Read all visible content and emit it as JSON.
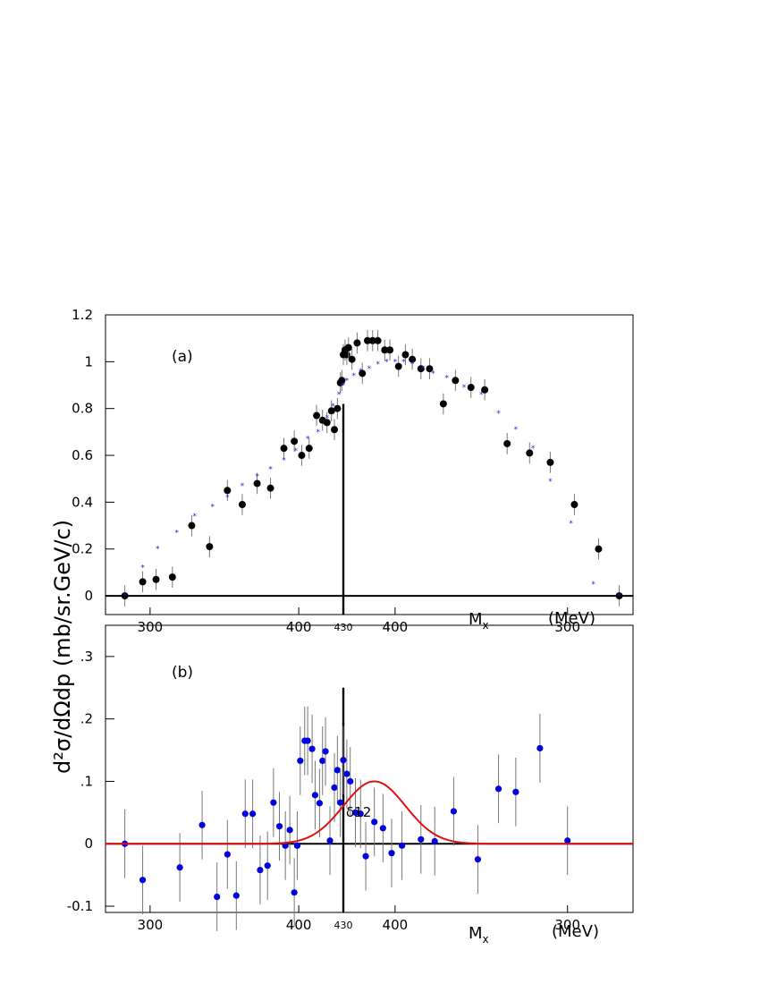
{
  "figure": {
    "ylabel": "d²σ/dΩdp  (mb/sr.GeV/c)",
    "x_axis_label_main": "M",
    "x_axis_label_sub": "x",
    "x_axis_unit": "(MeV)",
    "colors": {
      "data_a": "#000000",
      "sim_a": "#1f1fd9",
      "data_b": "#0000e0",
      "fit_b": "#e01010",
      "axes": "#000000",
      "errorbar": "#777777"
    }
  },
  "chart_data": [
    {
      "type": "scatter",
      "panel_label": "(a)",
      "ylim": [
        -0.08,
        1.2
      ],
      "x_note": "Missing mass folded about the 430 MeV kinematic limit: left branch rises 280→430, right branch falls 430→270.",
      "x_ticks": [
        {
          "label": "300",
          "branch": "left",
          "mx": 300
        },
        {
          "label": "400",
          "branch": "left",
          "mx": 400
        },
        {
          "label": "430",
          "branch": "center",
          "mx": 430,
          "small": true
        },
        {
          "label": "400",
          "branch": "right",
          "mx": 400
        },
        {
          "label": "300",
          "branch": "right",
          "mx": 300
        }
      ],
      "y_ticks": [
        "0",
        "0.2",
        "0.4",
        "0.6",
        "0.8",
        "1",
        "1.2"
      ],
      "y_tick_values": [
        0,
        0.2,
        0.4,
        0.6,
        0.8,
        1.0,
        1.2
      ],
      "series": [
        {
          "marker": "filled-circle-black",
          "left": [
            [
              283,
              0
            ],
            [
              295,
              0.06
            ],
            [
              304,
              0.07
            ],
            [
              315,
              0.08
            ],
            [
              328,
              0.3
            ],
            [
              340,
              0.21
            ],
            [
              352,
              0.45
            ],
            [
              362,
              0.39
            ],
            [
              372,
              0.48
            ],
            [
              381,
              0.46
            ],
            [
              390,
              0.63
            ],
            [
              397,
              0.66
            ],
            [
              402,
              0.6
            ],
            [
              407,
              0.63
            ],
            [
              412,
              0.77
            ],
            [
              416,
              0.75
            ],
            [
              419,
              0.74
            ],
            [
              422,
              0.79
            ],
            [
              424,
              0.71
            ],
            [
              426,
              0.8
            ],
            [
              428,
              0.91
            ],
            [
              429,
              0.92
            ],
            [
              430,
              1.03
            ]
          ],
          "right": [
            [
              429,
              1.05
            ],
            [
              428,
              1.03
            ],
            [
              427,
              1.06
            ],
            [
              425,
              1.01
            ],
            [
              422,
              1.08
            ],
            [
              419,
              0.95
            ],
            [
              416,
              1.09
            ],
            [
              413,
              1.09
            ],
            [
              410,
              1.09
            ],
            [
              406,
              1.05
            ],
            [
              403,
              1.05
            ],
            [
              398,
              0.98
            ],
            [
              394,
              1.03
            ],
            [
              390,
              1.01
            ],
            [
              385,
              0.97
            ],
            [
              380,
              0.97
            ],
            [
              372,
              0.82
            ],
            [
              365,
              0.92
            ],
            [
              356,
              0.89
            ],
            [
              348,
              0.88
            ],
            [
              335,
              0.65
            ],
            [
              322,
              0.61
            ],
            [
              310,
              0.57
            ],
            [
              296,
              0.39
            ],
            [
              282,
              0.2
            ],
            [
              270,
              0.0
            ]
          ],
          "yerr": 0.045
        },
        {
          "marker": "small-star-blue",
          "left": [
            [
              283,
              0
            ],
            [
              295,
              0.12
            ],
            [
              305,
              0.2
            ],
            [
              318,
              0.27
            ],
            [
              330,
              0.34
            ],
            [
              342,
              0.38
            ],
            [
              352,
              0.42
            ],
            [
              362,
              0.47
            ],
            [
              372,
              0.51
            ],
            [
              381,
              0.54
            ],
            [
              390,
              0.58
            ],
            [
              398,
              0.62
            ],
            [
              406,
              0.67
            ],
            [
              413,
              0.7
            ],
            [
              419,
              0.76
            ],
            [
              423,
              0.81
            ],
            [
              427,
              0.86
            ],
            [
              430,
              0.9
            ]
          ],
          "right": [
            [
              428,
              0.92
            ],
            [
              424,
              0.94
            ],
            [
              420,
              0.96
            ],
            [
              415,
              0.97
            ],
            [
              410,
              0.99
            ],
            [
              405,
              1.0
            ],
            [
              400,
              1.0
            ],
            [
              395,
              1.0
            ],
            [
              390,
              0.99
            ],
            [
              384,
              0.97
            ],
            [
              378,
              0.95
            ],
            [
              370,
              0.93
            ],
            [
              360,
              0.89
            ],
            [
              350,
              0.86
            ],
            [
              340,
              0.78
            ],
            [
              330,
              0.71
            ],
            [
              320,
              0.63
            ],
            [
              310,
              0.49
            ],
            [
              298,
              0.31
            ],
            [
              285,
              0.05
            ],
            [
              270,
              0.0
            ]
          ]
        }
      ]
    },
    {
      "type": "scatter",
      "panel_label": "(b)",
      "ylim": [
        -0.11,
        0.35
      ],
      "x_ticks": [
        {
          "label": "300",
          "branch": "left",
          "mx": 300
        },
        {
          "label": "400",
          "branch": "left",
          "mx": 400
        },
        {
          "label": "430",
          "branch": "center",
          "mx": 430,
          "small": true
        },
        {
          "label": "400",
          "branch": "right",
          "mx": 400
        },
        {
          "label": "300",
          "branch": "right",
          "mx": 300
        }
      ],
      "y_ticks": [
        "-0.1",
        "0",
        ".1",
        ".2",
        ".3"
      ],
      "y_tick_values": [
        -0.1,
        0,
        0.1,
        0.2,
        0.3
      ],
      "annotation": "δ12",
      "fit": {
        "type": "gaussian",
        "peak": 0.1,
        "center_mx": 412,
        "branch": "right",
        "sigma_mx": 18
      },
      "series": [
        {
          "marker": "filled-circle-blue",
          "left": [
            [
              283,
              0.0
            ],
            [
              295,
              -0.058
            ],
            [
              320,
              -0.038
            ],
            [
              335,
              0.03
            ],
            [
              345,
              -0.085
            ],
            [
              352,
              -0.017
            ],
            [
              358,
              -0.083
            ],
            [
              364,
              0.048
            ],
            [
              369,
              0.048
            ],
            [
              374,
              -0.042
            ],
            [
              379,
              -0.035
            ],
            [
              383,
              0.066
            ],
            [
              387,
              0.028
            ],
            [
              391,
              -0.003
            ],
            [
              394,
              0.022
            ],
            [
              397,
              -0.078
            ],
            [
              399,
              -0.003
            ],
            [
              401,
              0.133
            ],
            [
              404,
              0.165
            ],
            [
              406,
              0.165
            ],
            [
              409,
              0.152
            ],
            [
              411,
              0.078
            ],
            [
              414,
              0.065
            ],
            [
              416,
              0.133
            ],
            [
              418,
              0.148
            ],
            [
              421,
              0.005
            ],
            [
              424,
              0.09
            ],
            [
              426,
              0.118
            ],
            [
              428,
              0.066
            ],
            [
              430,
              0.134
            ]
          ],
          "right": [
            [
              428,
              0.112
            ],
            [
              426,
              0.1
            ],
            [
              423,
              0.05
            ],
            [
              420,
              0.048
            ],
            [
              417,
              -0.02
            ],
            [
              412,
              0.035
            ],
            [
              407,
              0.025
            ],
            [
              402,
              -0.015
            ],
            [
              396,
              -0.003
            ],
            [
              385,
              0.007
            ],
            [
              377,
              0.004
            ],
            [
              366,
              0.052
            ],
            [
              352,
              -0.025
            ],
            [
              340,
              0.088
            ],
            [
              330,
              0.083
            ],
            [
              316,
              0.153
            ],
            [
              300,
              0.005
            ]
          ],
          "yerr": 0.055
        }
      ]
    }
  ]
}
